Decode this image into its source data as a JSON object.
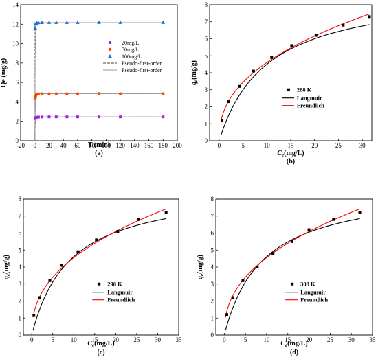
{
  "chart_data": [
    {
      "id": "a",
      "type": "scatter",
      "panel_label": "(a)",
      "xlabel": "T (min)",
      "ylabel": "Qe (mg/g)",
      "xlim": [
        -20,
        200
      ],
      "ylim": [
        0,
        14
      ],
      "xticks": [
        -20,
        0,
        20,
        40,
        60,
        80,
        100,
        120,
        140,
        160,
        180,
        200
      ],
      "yticks": [
        0,
        2,
        4,
        6,
        8,
        10,
        12,
        14
      ],
      "legend_position": "center-right",
      "series": [
        {
          "name": "20mg/L",
          "kind": "points",
          "marker": "square",
          "color": "#a020f0",
          "x": [
            0.5,
            1,
            2,
            3,
            5,
            10,
            20,
            30,
            45,
            60,
            90,
            120,
            180
          ],
          "y": [
            2.3,
            2.35,
            2.4,
            2.42,
            2.44,
            2.45,
            2.46,
            2.46,
            2.46,
            2.46,
            2.46,
            2.46,
            2.46
          ]
        },
        {
          "name": "50mg/L",
          "kind": "points",
          "marker": "circle",
          "color": "#ff4500",
          "x": [
            0.5,
            1,
            2,
            3,
            5,
            10,
            20,
            30,
            45,
            60,
            90,
            120,
            180
          ],
          "y": [
            4.4,
            4.6,
            4.75,
            4.8,
            4.82,
            4.83,
            4.84,
            4.84,
            4.84,
            4.84,
            4.85,
            4.84,
            4.84
          ]
        },
        {
          "name": "100mg/L",
          "kind": "points",
          "marker": "triangle",
          "color": "#1e6fd0",
          "x": [
            0.5,
            1,
            2,
            3,
            5,
            10,
            20,
            30,
            45,
            60,
            90,
            120,
            180
          ],
          "y": [
            11.6,
            12.0,
            12.1,
            12.12,
            12.15,
            12.16,
            12.17,
            12.17,
            12.17,
            12.17,
            12.17,
            12.17,
            12.17
          ]
        },
        {
          "name": "Pseudo-first-order",
          "kind": "fit",
          "dash": true,
          "color": "#444444",
          "curves": [
            {
              "qe": 2.46,
              "k": 2.0
            },
            {
              "qe": 4.84,
              "k": 2.0
            },
            {
              "qe": 12.17,
              "k": 2.5
            }
          ]
        },
        {
          "name": "Pseudo-first-order",
          "kind": "fit",
          "dash": false,
          "color": "#999999",
          "curves": [
            {
              "qe": 2.46,
              "k": 2.2
            },
            {
              "qe": 4.84,
              "k": 2.2
            },
            {
              "qe": 12.17,
              "k": 2.7
            }
          ]
        }
      ]
    },
    {
      "id": "b",
      "type": "scatter",
      "panel_label": "(b)",
      "xlabel": "Ce(mg/L)",
      "ylabel": "qe(mg/g)",
      "xlim": [
        -2,
        32
      ],
      "ylim": [
        0,
        8
      ],
      "xticks": [
        0,
        5,
        10,
        15,
        20,
        25,
        30
      ],
      "yticks": [
        0,
        1,
        2,
        3,
        4,
        5,
        6,
        7,
        8
      ],
      "legend_title": "288 K",
      "legend_position": "center-right",
      "points": {
        "x": [
          0.6,
          2.0,
          4.2,
          7.2,
          11.0,
          15.2,
          20.3,
          26.0,
          31.5
        ],
        "y": [
          1.2,
          2.3,
          3.2,
          4.1,
          4.9,
          5.6,
          6.2,
          6.8,
          7.3
        ]
      },
      "series": [
        {
          "name": "Langmuir",
          "color": "#000000",
          "model": "langmuir",
          "params": {
            "qm": 9.0,
            "KL": 0.1
          },
          "range": [
            0.4,
            31.5
          ]
        },
        {
          "name": "Freundlich",
          "color": "#ff0000",
          "model": "freundlich",
          "params": {
            "KF": 1.75,
            "n": 2.38
          },
          "range": [
            0.4,
            31.5
          ]
        }
      ]
    },
    {
      "id": "c",
      "type": "scatter",
      "panel_label": "(c)",
      "xlabel": "Ce(mg/L)",
      "ylabel": "qe(mg/g)",
      "xlim": [
        -2,
        35
      ],
      "ylim": [
        0,
        8
      ],
      "xticks": [
        0,
        5,
        10,
        15,
        20,
        25,
        30,
        35
      ],
      "yticks": [
        0,
        1,
        2,
        3,
        4,
        5,
        6,
        7,
        8
      ],
      "legend_title": "298 K",
      "legend_position": "center-right",
      "points": {
        "x": [
          0.5,
          1.9,
          4.3,
          7.1,
          11.0,
          15.4,
          20.5,
          25.5,
          32.0
        ],
        "y": [
          1.15,
          2.2,
          3.2,
          4.1,
          4.9,
          5.6,
          6.1,
          6.8,
          7.2
        ]
      },
      "series": [
        {
          "name": "Langmuir",
          "color": "#000000",
          "model": "langmuir",
          "params": {
            "qm": 8.8,
            "KL": 0.11
          },
          "range": [
            0.3,
            32.0
          ]
        },
        {
          "name": "Freundlich",
          "color": "#ff0000",
          "model": "freundlich",
          "params": {
            "KF": 1.73,
            "n": 2.38
          },
          "range": [
            0.3,
            32.0
          ]
        }
      ]
    },
    {
      "id": "d",
      "type": "scatter",
      "panel_label": "(d)",
      "xlabel": "Ce(mg/L)",
      "ylabel": "qe(mg/g)",
      "xlim": [
        -2,
        35
      ],
      "ylim": [
        0,
        8
      ],
      "xticks": [
        0,
        5,
        10,
        15,
        20,
        25,
        30,
        35
      ],
      "yticks": [
        0,
        1,
        2,
        3,
        4,
        5,
        6,
        7,
        8
      ],
      "legend_title": "308 K",
      "legend_position": "center-right",
      "points": {
        "x": [
          0.6,
          2.0,
          4.4,
          7.8,
          11.5,
          16.0,
          20.0,
          25.8,
          32.0
        ],
        "y": [
          1.2,
          2.2,
          3.2,
          4.0,
          4.8,
          5.5,
          6.2,
          6.8,
          7.2
        ]
      },
      "series": [
        {
          "name": "Langmuir",
          "color": "#000000",
          "model": "langmuir",
          "params": {
            "qm": 8.8,
            "KL": 0.11
          },
          "range": [
            0.3,
            32.0
          ]
        },
        {
          "name": "Freundlich",
          "color": "#ff0000",
          "model": "freundlich",
          "params": {
            "KF": 1.73,
            "n": 2.38
          },
          "range": [
            0.3,
            32.0
          ]
        }
      ]
    }
  ]
}
